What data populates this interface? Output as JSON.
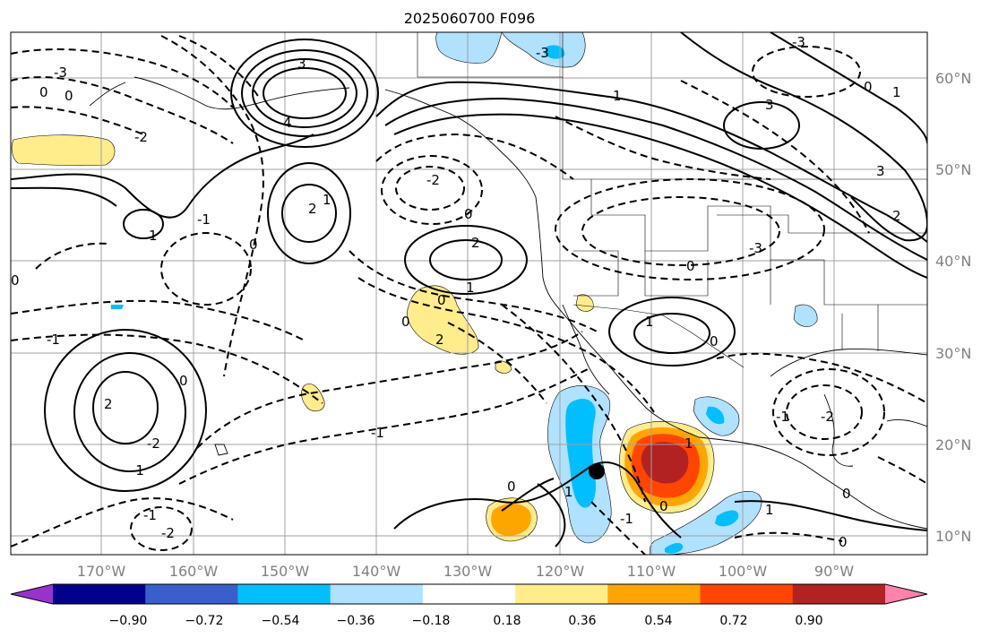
{
  "title": "2025060700 F096",
  "map": {
    "lon_labels": [
      "170°W",
      "160°W",
      "150°W",
      "140°W",
      "130°W",
      "120°W",
      "110°W",
      "100°W",
      "90°W"
    ],
    "lat_labels": [
      "60°N",
      "50°N",
      "40°N",
      "30°N",
      "20°N",
      "10°N"
    ],
    "grid": true,
    "storm_marker": "circle"
  },
  "colorbar": {
    "ticks": [
      "−0.90",
      "−0.72",
      "−0.54",
      "−0.36",
      "−0.18",
      "0.18",
      "0.36",
      "0.54",
      "0.72",
      "0.90"
    ],
    "colors": [
      "#9932cc",
      "#00008b",
      "#3a5fcd",
      "#00bfff",
      "#b0e2ff",
      "#ffffff",
      "#ffec8b",
      "#ffa500",
      "#ff4500",
      "#b22222",
      "#ff82ab"
    ],
    "extend": "both"
  },
  "contour_labels": {
    "l1": "0",
    "l2": "-3",
    "l3": "-2",
    "l4": "0",
    "l5": "3",
    "l6": "4",
    "l7": "1",
    "l8": "2",
    "l9": "1",
    "l10": "-1",
    "l11": "0",
    "l12": "-2",
    "l13": "0",
    "l14": "2",
    "l15": "0",
    "l16": "2",
    "l17": "-1",
    "l18": "0",
    "l19": "1",
    "l20": "0",
    "l21": "1",
    "l22": "3",
    "l23": "-3",
    "l24": "0",
    "l25": "1",
    "l26": "3",
    "l27": "-3",
    "l28": "0",
    "l29": "2",
    "l30": "1",
    "l31": "-1",
    "l32": "0",
    "l33": "-2",
    "l34": "2",
    "l35": "-1",
    "l36": "-1",
    "l37": "-2",
    "l38": "0",
    "l39": "1",
    "l40": "0",
    "l41": "-1",
    "l42": "1",
    "l43": "0",
    "l44": "-2",
    "l45": "0",
    "l46": "-1",
    "l47": "-3",
    "l48": "1",
    "l49": "0"
  }
}
